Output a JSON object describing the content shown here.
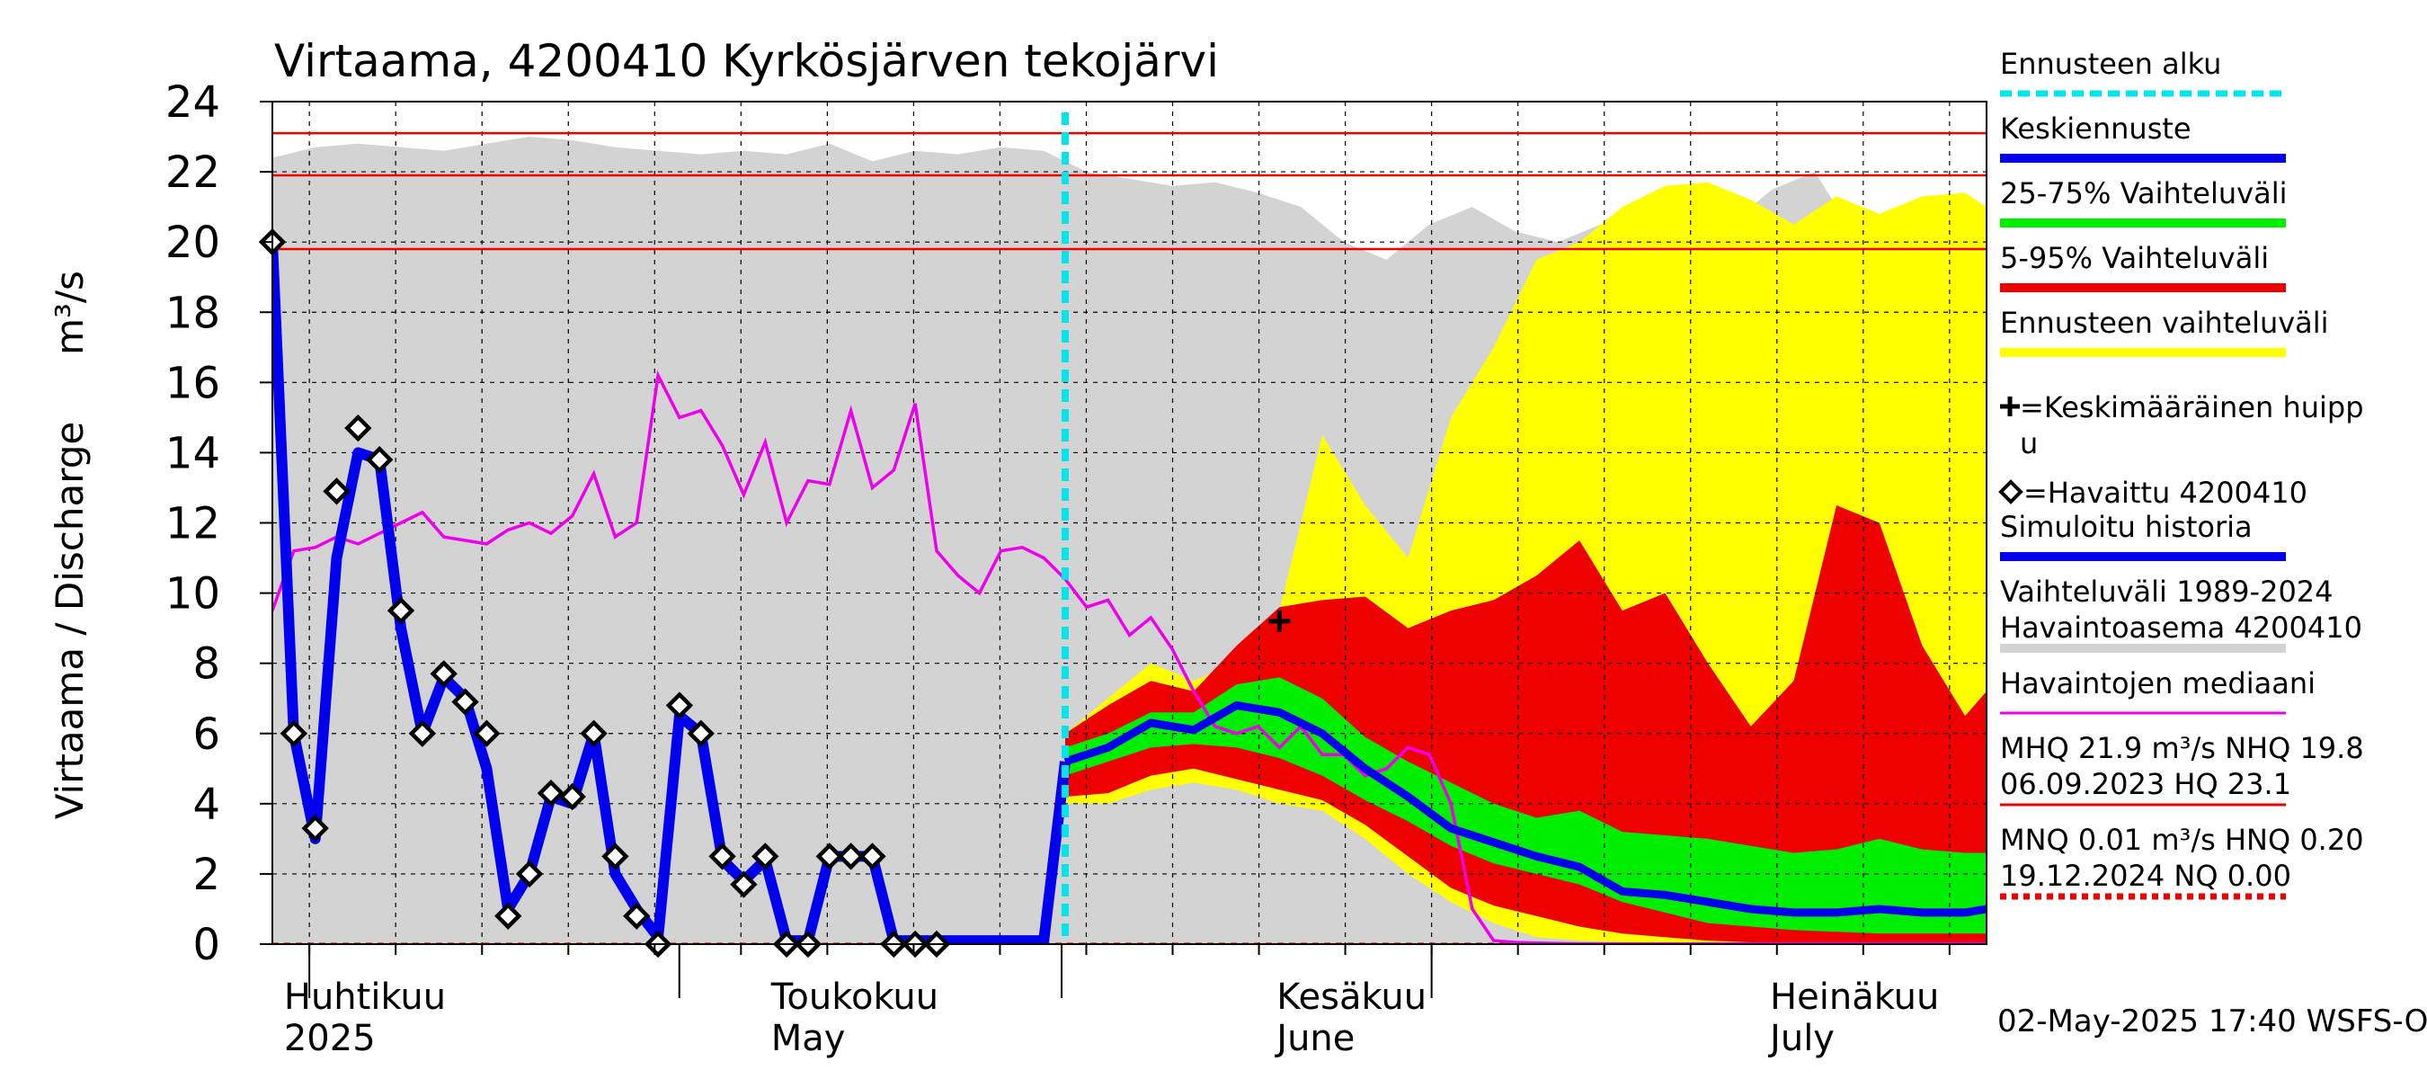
{
  "chart_data": {
    "type": "area",
    "title": "Virtaama, 4200410 Kyrkösjärven tekojärvi",
    "ylabel": "Virtaama / Discharge",
    "yunit": "m³/s",
    "ylim": [
      0,
      24
    ],
    "yticks": [
      "0",
      "2",
      "4",
      "6",
      "8",
      "10",
      "12",
      "14",
      "16",
      "18",
      "20",
      "22",
      "24"
    ],
    "x_range_days": [
      0,
      80
    ],
    "x_start_date": "2025-03-29",
    "month_labels": [
      {
        "day": 0.5,
        "fi": "Huhtikuu",
        "en": "2025"
      },
      {
        "day": 40,
        "fi": "Toukokuu",
        "en": "May"
      },
      {
        "day": 81,
        "fi": "Kesäkuu",
        "en": "June"
      },
      {
        "day": 121,
        "fi": "Heinäkuu",
        "en": "July"
      }
    ],
    "month_boundaries_day": [
      3,
      33,
      64,
      94
    ],
    "forecast_start_day": 37,
    "reference_lines": [
      {
        "name": "HQ",
        "value": 23.1
      },
      {
        "name": "MHQ",
        "value": 21.9
      },
      {
        "name": "NHQ",
        "value": 19.8
      },
      {
        "name": "MNQ",
        "value": 0.01
      }
    ],
    "historical_band": {
      "name": "Vaihteluväli 1989-2024 Havaintoasema 4200410",
      "x": [
        0,
        2,
        4,
        6,
        8,
        10,
        12,
        14,
        16,
        18,
        20,
        22,
        24,
        26,
        28,
        30,
        32,
        34,
        36,
        38,
        40,
        42,
        44,
        46,
        48,
        50,
        52,
        54,
        56,
        58,
        60,
        62,
        64,
        66,
        68,
        70,
        72,
        74,
        76,
        78,
        80
      ],
      "upper": [
        22.4,
        22.7,
        22.8,
        22.7,
        22.6,
        22.8,
        23.0,
        22.9,
        22.7,
        22.6,
        22.5,
        22.6,
        22.5,
        22.8,
        22.3,
        22.6,
        22.5,
        22.7,
        22.6,
        22.0,
        21.8,
        21.6,
        21.7,
        21.4,
        21.0,
        20.0,
        19.5,
        20.5,
        21.0,
        20.3,
        20.0,
        20.5,
        19.5,
        19.0,
        20.5,
        21.5,
        22.0,
        20.0,
        19.0,
        18.0,
        17.0
      ],
      "lower": [
        0,
        0,
        0,
        0,
        0,
        0,
        0,
        0,
        0,
        0,
        0,
        0,
        0,
        0,
        0,
        0,
        0,
        0,
        0,
        0,
        0,
        0,
        0,
        0,
        0,
        0,
        0,
        0,
        0,
        0,
        0,
        0,
        0,
        0,
        0,
        0,
        0,
        0,
        0,
        0,
        0
      ]
    },
    "forecast_range_band": {
      "name": "Ennusteen vaihteluväli",
      "x": [
        37,
        39,
        41,
        43,
        45,
        47,
        49,
        51,
        53,
        55,
        57,
        59,
        61,
        63,
        65,
        67,
        69,
        71,
        73,
        75,
        77,
        79,
        80
      ],
      "upper": [
        6.0,
        7.0,
        8.0,
        7.5,
        8.0,
        9.5,
        14.5,
        12.5,
        11.0,
        15.0,
        17.0,
        19.5,
        20.0,
        21.0,
        21.6,
        21.7,
        21.2,
        20.5,
        21.3,
        20.8,
        21.3,
        21.4,
        21.0
      ],
      "lower": [
        4.0,
        4.0,
        4.4,
        4.6,
        4.4,
        4.0,
        3.8,
        3.0,
        2.0,
        1.2,
        0.6,
        0.2,
        0.1,
        0.05,
        0,
        0,
        0,
        0,
        0,
        0,
        0,
        0,
        0
      ]
    },
    "band_5_95": {
      "name": "5-95% Vaihteluväli",
      "x": [
        37,
        39,
        41,
        43,
        45,
        47,
        49,
        51,
        53,
        55,
        57,
        59,
        61,
        63,
        65,
        67,
        69,
        71,
        73,
        75,
        77,
        79,
        80
      ],
      "upper": [
        6.0,
        6.8,
        7.5,
        7.2,
        8.5,
        9.6,
        9.8,
        9.9,
        9.0,
        9.5,
        9.8,
        10.5,
        11.5,
        9.5,
        10.0,
        8.0,
        6.2,
        7.5,
        12.5,
        12.0,
        8.5,
        6.5,
        7.2
      ],
      "lower": [
        4.2,
        4.3,
        4.8,
        5.0,
        4.7,
        4.4,
        4.1,
        3.4,
        2.5,
        1.6,
        1.1,
        0.8,
        0.5,
        0.3,
        0.2,
        0.1,
        0.05,
        0.03,
        0.02,
        0.01,
        0,
        0,
        0
      ]
    },
    "band_25_75": {
      "name": "25-75% Vaihteluväli",
      "x": [
        37,
        39,
        41,
        43,
        45,
        47,
        49,
        51,
        53,
        55,
        57,
        59,
        61,
        63,
        65,
        67,
        69,
        71,
        73,
        75,
        77,
        79,
        80
      ],
      "upper": [
        5.6,
        6.0,
        6.6,
        6.6,
        7.4,
        7.6,
        7.0,
        5.9,
        5.2,
        4.6,
        4.0,
        3.6,
        3.8,
        3.2,
        3.1,
        3.0,
        2.8,
        2.6,
        2.7,
        3.0,
        2.7,
        2.6,
        2.6
      ],
      "lower": [
        4.8,
        5.2,
        5.6,
        5.7,
        5.6,
        5.3,
        4.8,
        4.1,
        3.5,
        2.8,
        2.3,
        2.0,
        1.7,
        1.2,
        0.9,
        0.6,
        0.5,
        0.4,
        0.35,
        0.3,
        0.3,
        0.3,
        0.3
      ]
    },
    "series": [
      {
        "name": "Keskiennuste",
        "x": [
          37,
          39,
          41,
          43,
          45,
          47,
          49,
          51,
          53,
          55,
          57,
          59,
          61,
          63,
          65,
          67,
          69,
          71,
          73,
          75,
          77,
          79,
          80
        ],
        "values": [
          5.2,
          5.6,
          6.3,
          6.1,
          6.8,
          6.6,
          6.0,
          5.0,
          4.2,
          3.3,
          2.9,
          2.5,
          2.2,
          1.5,
          1.4,
          1.2,
          1.0,
          0.9,
          0.9,
          1.0,
          0.9,
          0.9,
          1.0
        ]
      },
      {
        "name": "Simuloitu historia",
        "x": [
          0,
          1,
          2,
          3,
          4,
          5,
          6,
          7,
          8,
          9,
          10,
          11,
          12,
          13,
          14,
          15,
          16,
          17,
          18,
          19,
          20,
          21,
          22,
          23,
          24,
          25,
          26,
          27,
          28,
          29,
          30,
          31,
          32,
          33,
          34,
          35,
          36,
          37
        ],
        "values": [
          20.0,
          6.0,
          3.0,
          11.0,
          14.0,
          13.8,
          9.0,
          6.0,
          7.6,
          7.0,
          5.0,
          1.0,
          2.0,
          4.2,
          4.0,
          6.0,
          2.0,
          1.0,
          0.2,
          6.5,
          6.0,
          2.4,
          1.8,
          2.4,
          0.1,
          0.1,
          2.5,
          2.5,
          2.5,
          0.1,
          0.1,
          0.1,
          0.1,
          0.1,
          0.1,
          0.1,
          0.1,
          5.2
        ]
      },
      {
        "name": "Havaintojen mediaani",
        "x": [
          0,
          1,
          2,
          3,
          4,
          5,
          6,
          7,
          8,
          9,
          10,
          11,
          12,
          13,
          14,
          15,
          16,
          17,
          18,
          19,
          20,
          21,
          22,
          23,
          24,
          25,
          26,
          27,
          28,
          29,
          30,
          31,
          32,
          33,
          34,
          35,
          36,
          37,
          38,
          39,
          40,
          41,
          42,
          43,
          44,
          45,
          46,
          47,
          48,
          49,
          50,
          51,
          52,
          53,
          54,
          55,
          56,
          57,
          58,
          59,
          60,
          61,
          62,
          63,
          64,
          65,
          66,
          67,
          68,
          69,
          70,
          71,
          72,
          73,
          74,
          75,
          76,
          77,
          78,
          79,
          80
        ],
        "values": [
          9.5,
          11.2,
          11.3,
          11.6,
          11.4,
          11.7,
          12.0,
          12.3,
          11.6,
          11.5,
          11.4,
          11.8,
          12.0,
          11.7,
          12.2,
          13.4,
          11.6,
          12.0,
          16.2,
          15.0,
          15.2,
          14.2,
          12.8,
          14.3,
          12.0,
          13.2,
          13.1,
          15.2,
          13.0,
          13.5,
          15.4,
          11.2,
          10.5,
          10.0,
          11.2,
          11.3,
          11.0,
          10.4,
          9.6,
          9.8,
          8.8,
          9.3,
          8.4,
          7.2,
          6.2,
          6.0,
          6.2,
          5.6,
          6.2,
          5.4,
          5.4,
          4.8,
          5.0,
          5.6,
          5.4,
          4.0,
          1.0,
          0.1,
          0.05,
          0.03,
          0.02,
          0.01,
          0.01,
          0.01,
          0.01,
          0.01,
          0.01,
          0.01,
          0.01,
          0.01,
          0.01,
          0.01,
          0.01,
          0.01,
          0.01,
          0.01,
          0.01,
          0.01,
          0.01,
          0.01,
          0.01
        ]
      }
    ],
    "observed": {
      "name": "Havaittu 4200410",
      "x": [
        0,
        1,
        2,
        3,
        4,
        5,
        6,
        7,
        8,
        9,
        10,
        11,
        12,
        13,
        14,
        15,
        16,
        17,
        18,
        19,
        20,
        21,
        22,
        23,
        24,
        25,
        26,
        27,
        28,
        29,
        30,
        31
      ],
      "values": [
        20.0,
        6.0,
        3.3,
        12.9,
        14.7,
        13.8,
        9.5,
        6.0,
        7.7,
        6.9,
        6.0,
        0.8,
        2.0,
        4.3,
        4.2,
        6.0,
        2.5,
        0.8,
        0.0,
        6.8,
        6.0,
        2.5,
        1.7,
        2.5,
        0.0,
        0.0,
        2.5,
        2.5,
        2.5,
        0.0,
        0.0,
        0.0
      ]
    },
    "mean_peak": {
      "name": "Keskimääräinen huippu",
      "x": 47,
      "y": 9.2
    },
    "legend": [
      {
        "key": "forecast_start",
        "label": "Ennusteen alku",
        "color": "#00e5ee",
        "style": "dash"
      },
      {
        "key": "mean_forecast",
        "label": "Keskiennuste",
        "color": "#0000ee",
        "style": "line"
      },
      {
        "key": "band_25_75",
        "label": "25-75% Vaihteluväli",
        "color": "#00ee00",
        "style": "line"
      },
      {
        "key": "band_5_95",
        "label": "5-95% Vaihteluväli",
        "color": "#ee0000",
        "style": "line"
      },
      {
        "key": "forecast_range",
        "label": "Ennusteen vaihteluväli",
        "color": "#ffff00",
        "style": "line"
      },
      {
        "key": "mean_peak",
        "label": "=Keskimääräinen huipp",
        "label2": "u",
        "style": "plus"
      },
      {
        "key": "observed",
        "label": "=Havaittu 4200410",
        "style": "diamond"
      },
      {
        "key": "simulated",
        "label": "Simuloitu historia",
        "color": "#0000ee",
        "style": "line"
      },
      {
        "key": "historical",
        "label": "Vaihteluväli 1989-2024",
        "label2": " Havaintoasema 4200410",
        "color": "#d3d3d3",
        "style": "line"
      },
      {
        "key": "median",
        "label": "Havaintojen mediaani",
        "color": "#ee00ee",
        "style": "thin"
      },
      {
        "key": "stats_high",
        "label": "MHQ 21.9 m³/s NHQ 19.8",
        "label2": "06.09.2023 HQ 23.1",
        "color": "#ee0000",
        "style": "thin"
      },
      {
        "key": "stats_low",
        "label": "MNQ 0.01 m³/s HNQ 0.20",
        "label2": "19.12.2024 NQ 0.00",
        "color": "#ee0000",
        "style": "dash"
      }
    ],
    "footer": "02-May-2025 17:40 WSFS-O",
    "colors": {
      "historical": "#d3d3d3",
      "forecast_range": "#ffff00",
      "band_5_95": "#ee0000",
      "band_25_75": "#00ee00",
      "mean": "#0000ee",
      "median": "#ee00ee",
      "forecast_start": "#00e5ee",
      "ref": "#ee0000"
    }
  }
}
